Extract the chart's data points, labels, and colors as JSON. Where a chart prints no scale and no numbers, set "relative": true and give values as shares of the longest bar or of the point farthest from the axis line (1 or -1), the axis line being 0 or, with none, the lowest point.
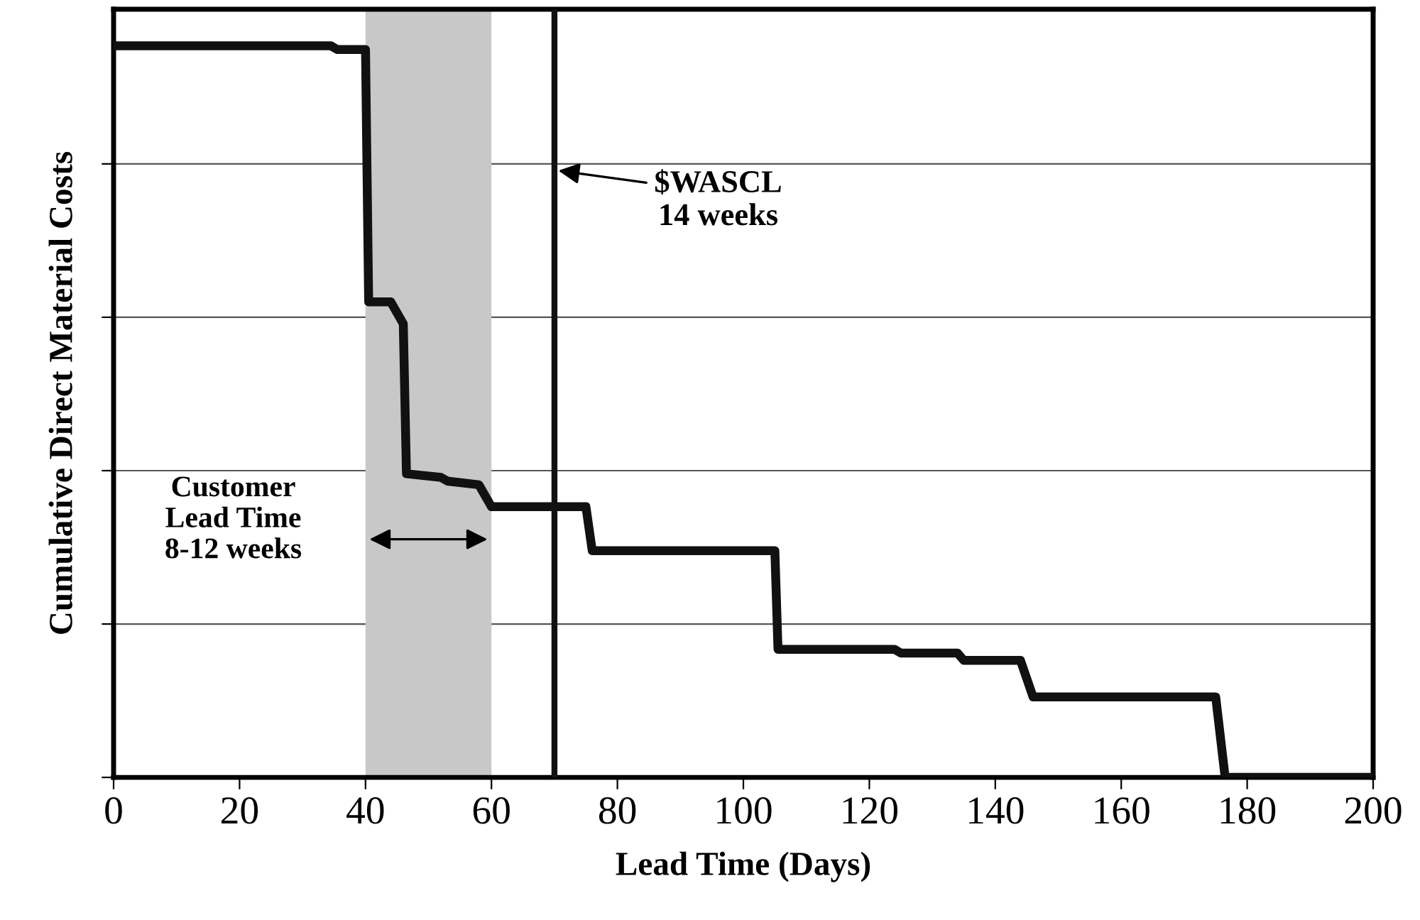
{
  "chart_data": {
    "type": "line",
    "relative": true,
    "xlabel": "Lead Time (Days)",
    "ylabel": "Cumulative Direct Material Costs",
    "xlim": [
      0,
      200
    ],
    "xticks": [
      0,
      20,
      40,
      60,
      80,
      100,
      120,
      140,
      160,
      180,
      200
    ],
    "grid": "y",
    "marker": "none",
    "line_style": "solid",
    "series": [
      {
        "color": "#111111",
        "x": [
          0,
          34.5,
          35.5,
          40,
          40.5,
          44,
          46,
          46.5,
          52,
          53,
          58,
          60,
          75,
          76,
          105,
          105.5,
          124,
          125,
          134,
          135,
          144,
          146,
          175,
          176.5,
          200
        ],
        "values": [
          1.0,
          1.0,
          0.995,
          0.995,
          0.65,
          0.65,
          0.62,
          0.415,
          0.41,
          0.405,
          0.4,
          0.37,
          0.37,
          0.31,
          0.31,
          0.175,
          0.175,
          0.17,
          0.17,
          0.16,
          0.16,
          0.11,
          0.11,
          0,
          0
        ]
      }
    ],
    "bands": [
      {
        "axis": "x",
        "from": 40,
        "to": 60,
        "color": "#c8c8c8"
      }
    ],
    "ref_lines": [
      {
        "axis": "x",
        "value": 70,
        "color": "#111111",
        "line_style": "solid"
      }
    ],
    "annotations": [
      {
        "text": "$WASCL\n14 weeks",
        "x": 70,
        "y": 0.83
      },
      "Customer\nLead Time\n8-12 weeks"
    ]
  }
}
